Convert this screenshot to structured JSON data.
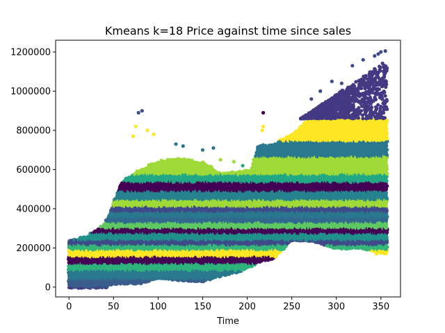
{
  "chart_data": {
    "type": "scatter",
    "title": "Kmeans k=18 Price against time since sales",
    "xlabel": "Time",
    "ylabel": "",
    "xlim": [
      -15,
      372
    ],
    "ylim": [
      -50000,
      1260000
    ],
    "xticks": [
      0,
      50,
      100,
      150,
      200,
      250,
      300,
      350
    ],
    "yticks": [
      0,
      200000,
      400000,
      600000,
      800000,
      1000000,
      1200000
    ],
    "grid": false,
    "legend": "none",
    "colormap": "viridis",
    "clusters": 18,
    "time_range": [
      0,
      357
    ],
    "envelope": {
      "time": [
        0,
        20,
        40,
        50,
        60,
        80,
        100,
        120,
        150,
        170,
        190,
        205,
        212,
        230,
        250,
        270,
        300,
        330,
        357
      ],
      "upper_price": [
        240000,
        260000,
        320000,
        430000,
        540000,
        600000,
        640000,
        655000,
        640000,
        580000,
        590000,
        600000,
        720000,
        730000,
        780000,
        860000,
        870000,
        860000,
        860000
      ],
      "lower_price": [
        0,
        0,
        0,
        20000,
        20000,
        20000,
        50000,
        40000,
        30000,
        60000,
        80000,
        110000,
        130000,
        150000,
        240000,
        240000,
        200000,
        200000,
        170000
      ]
    },
    "cluster_bands": [
      {
        "color": "#3b5d8c",
        "low": 0,
        "high": 40000
      },
      {
        "color": "#2a788e",
        "low": 40000,
        "high": 85000
      },
      {
        "color": "#2eb37c",
        "low": 85000,
        "high": 120000
      },
      {
        "color": "#440154",
        "low": 120000,
        "high": 155000
      },
      {
        "color": "#fde725",
        "low": 155000,
        "high": 190000
      },
      {
        "color": "#35b779",
        "low": 190000,
        "high": 215000
      },
      {
        "color": "#3e4a89",
        "low": 215000,
        "high": 240000
      },
      {
        "color": "#21918c",
        "low": 240000,
        "high": 275000
      },
      {
        "color": "#440154",
        "low": 275000,
        "high": 300000
      },
      {
        "color": "#5ec962",
        "low": 300000,
        "high": 330000
      },
      {
        "color": "#31688e",
        "low": 330000,
        "high": 355000
      },
      {
        "color": "#2a788e",
        "low": 355000,
        "high": 385000
      },
      {
        "color": "#3e4a89",
        "low": 385000,
        "high": 410000
      },
      {
        "color": "#a0da39",
        "low": 410000,
        "high": 445000
      },
      {
        "color": "#26828e",
        "low": 445000,
        "high": 490000
      },
      {
        "color": "#440154",
        "low": 490000,
        "high": 535000
      },
      {
        "color": "#22a884",
        "low": 535000,
        "high": 575000
      },
      {
        "color": "#a0da39",
        "low": 575000,
        "high": 665000
      },
      {
        "color": "#2a788e",
        "low": 665000,
        "high": 745000
      },
      {
        "color": "#fde725",
        "low": 745000,
        "high": 860000
      },
      {
        "color": "#443983",
        "low": 860000,
        "high": 1210000
      }
    ],
    "outliers": [
      {
        "x": 78,
        "y": 890000,
        "color": "#3e4a89"
      },
      {
        "x": 82,
        "y": 900000,
        "color": "#3e4a89"
      },
      {
        "x": 75,
        "y": 820000,
        "color": "#fde725"
      },
      {
        "x": 88,
        "y": 800000,
        "color": "#fde725"
      },
      {
        "x": 95,
        "y": 780000,
        "color": "#fde725"
      },
      {
        "x": 72,
        "y": 770000,
        "color": "#fde725"
      },
      {
        "x": 120,
        "y": 730000,
        "color": "#2a788e"
      },
      {
        "x": 128,
        "y": 720000,
        "color": "#2a788e"
      },
      {
        "x": 150,
        "y": 700000,
        "color": "#2a788e"
      },
      {
        "x": 162,
        "y": 710000,
        "color": "#2a788e"
      },
      {
        "x": 170,
        "y": 650000,
        "color": "#a0da39"
      },
      {
        "x": 185,
        "y": 640000,
        "color": "#a0da39"
      },
      {
        "x": 195,
        "y": 620000,
        "color": "#22a884"
      },
      {
        "x": 217,
        "y": 800000,
        "color": "#fde725"
      },
      {
        "x": 218,
        "y": 820000,
        "color": "#fde725"
      },
      {
        "x": 218,
        "y": 890000,
        "color": "#440154"
      },
      {
        "x": 272,
        "y": 960000,
        "color": "#3e4a89"
      },
      {
        "x": 282,
        "y": 1000000,
        "color": "#3e4a89"
      },
      {
        "x": 295,
        "y": 1050000,
        "color": "#3e4a89"
      },
      {
        "x": 306,
        "y": 1040000,
        "color": "#3e4a89"
      },
      {
        "x": 318,
        "y": 1130000,
        "color": "#3e4a89"
      },
      {
        "x": 330,
        "y": 1160000,
        "color": "#3e4a89"
      },
      {
        "x": 343,
        "y": 1180000,
        "color": "#3e4a89"
      },
      {
        "x": 350,
        "y": 1200000,
        "color": "#3e4a89"
      },
      {
        "x": 355,
        "y": 1205000,
        "color": "#3e4a89"
      },
      {
        "x": 347,
        "y": 1190000,
        "color": "#3e4a89"
      },
      {
        "x": 228,
        "y": 640000,
        "color": "#a0da39"
      },
      {
        "x": 345,
        "y": 170000,
        "color": "#fde725"
      },
      {
        "x": 355,
        "y": 175000,
        "color": "#fde725"
      }
    ]
  }
}
